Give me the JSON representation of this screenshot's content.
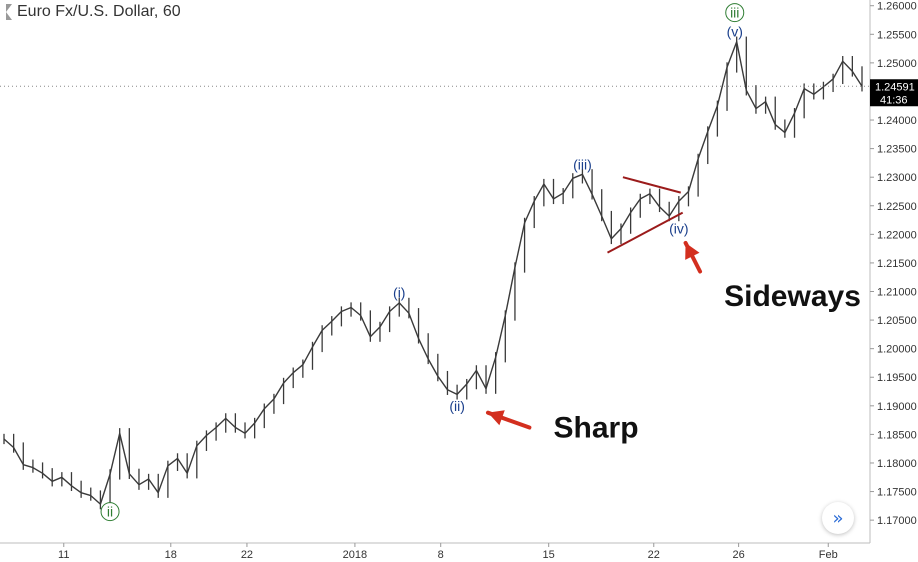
{
  "header": {
    "symbol_title": "Euro Fx/U.S. Dollar, 60"
  },
  "chart_data": {
    "type": "line",
    "title": "Euro Fx/U.S. Dollar, 60",
    "ylim": [
      1.166,
      1.261
    ],
    "ytick_values": [
      1.17,
      1.175,
      1.18,
      1.185,
      1.19,
      1.195,
      1.2,
      1.205,
      1.21,
      1.215,
      1.22,
      1.225,
      1.23,
      1.235,
      1.24,
      1.245,
      1.25,
      1.255,
      1.26
    ],
    "ytick_labels": [
      "1.17000",
      "1.17500",
      "1.18000",
      "1.18500",
      "1.19000",
      "1.19500",
      "1.20000",
      "1.20500",
      "1.21000",
      "1.21500",
      "1.22000",
      "1.22500",
      "1.23000",
      "1.23500",
      "1.24000",
      "1.24500",
      "1.25000",
      "1.25500",
      "1.26000"
    ],
    "xtick_labels": [
      "11",
      "18",
      "22",
      "2018",
      "8",
      "15",
      "22",
      "26",
      "Feb"
    ],
    "xtick_index": [
      6.2,
      17.3,
      25.2,
      36.4,
      45.3,
      56.5,
      67.4,
      76.2,
      85.5
    ],
    "x_count": 90,
    "series": [
      {
        "values": [
          1.1842,
          1.1827,
          1.1797,
          1.1792,
          1.1782,
          1.1768,
          1.1775,
          1.176,
          1.1748,
          1.1743,
          1.1728,
          1.178,
          1.1852,
          1.1781,
          1.1762,
          1.1772,
          1.1748,
          1.1795,
          1.1808,
          1.1782,
          1.183,
          1.1848,
          1.1862,
          1.1878,
          1.1862,
          1.1852,
          1.187,
          1.1895,
          1.1912,
          1.194,
          1.1958,
          1.1972,
          1.2003,
          1.2032,
          1.2048,
          1.2065,
          1.2072,
          1.2058,
          1.2021,
          1.2038,
          1.2065,
          1.208,
          1.2062,
          1.2018,
          1.1982,
          1.1952,
          1.1928,
          1.192,
          1.1938,
          1.1962,
          1.193,
          1.1985,
          1.2058,
          1.2142,
          1.222,
          1.2258,
          1.2288,
          1.2262,
          1.2272,
          1.2298,
          1.2305,
          1.227,
          1.2232,
          1.2192,
          1.221,
          1.2238,
          1.2262,
          1.2271,
          1.2248,
          1.2232,
          1.2258,
          1.2275,
          1.2332,
          1.238,
          1.2425,
          1.2492,
          1.2537,
          1.2452,
          1.242,
          1.2432,
          1.2392,
          1.2378,
          1.2412,
          1.2455,
          1.2445,
          1.2458,
          1.2472,
          1.2503,
          1.2485,
          1.2459
        ],
        "color": "#3a3a3a"
      }
    ],
    "last_price": {
      "value": 1.24591,
      "label": "1.24591",
      "countdown": "41:36",
      "color": "#000000"
    },
    "wave_labels": [
      {
        "text": "ii",
        "index": 11,
        "value": 1.1715,
        "circled": true,
        "color": "#2e7d32"
      },
      {
        "text": "(i)",
        "index": 41,
        "value": 1.2098,
        "circled": false,
        "color": "#1a3f8c"
      },
      {
        "text": "(ii)",
        "index": 47,
        "value": 1.19,
        "circled": false,
        "color": "#1a3f8c"
      },
      {
        "text": "(iii)",
        "index": 60,
        "value": 1.2322,
        "circled": false,
        "color": "#1a3f8c"
      },
      {
        "text": "(iv)",
        "index": 70,
        "value": 1.221,
        "circled": false,
        "color": "#1a3f8c"
      },
      {
        "text": "(v)",
        "index": 75.8,
        "value": 1.2555,
        "circled": false,
        "color": "#1a3f8c"
      },
      {
        "text": "iii",
        "index": 75.8,
        "value": 1.2588,
        "circled": true,
        "color": "#2e7d32"
      }
    ],
    "triangle_lines": [
      {
        "from": [
          64.2,
          1.23
        ],
        "to": [
          70.2,
          1.2273
        ],
        "color": "#9b1b1b"
      },
      {
        "from": [
          62.6,
          1.2168
        ],
        "to": [
          70.4,
          1.2238
        ],
        "color": "#9b1b1b"
      }
    ],
    "annotations": [
      {
        "text": "Sharp",
        "text_index": 57.0,
        "text_value": 1.1845,
        "arrow_from": [
          54.5,
          1.1862
        ],
        "arrow_to": [
          50.2,
          1.1888
        ],
        "color": "#d32f1f"
      },
      {
        "text": "Sideways",
        "text_index": 74.7,
        "text_value": 1.2075,
        "arrow_from": [
          72.2,
          1.2135
        ],
        "arrow_to": [
          70.7,
          1.2185
        ],
        "color": "#d32f1f"
      }
    ],
    "grid": false
  },
  "controls": {
    "go_to_realtime_icon": "double-chevron-right-icon",
    "go_to_realtime_glyph": "»"
  }
}
